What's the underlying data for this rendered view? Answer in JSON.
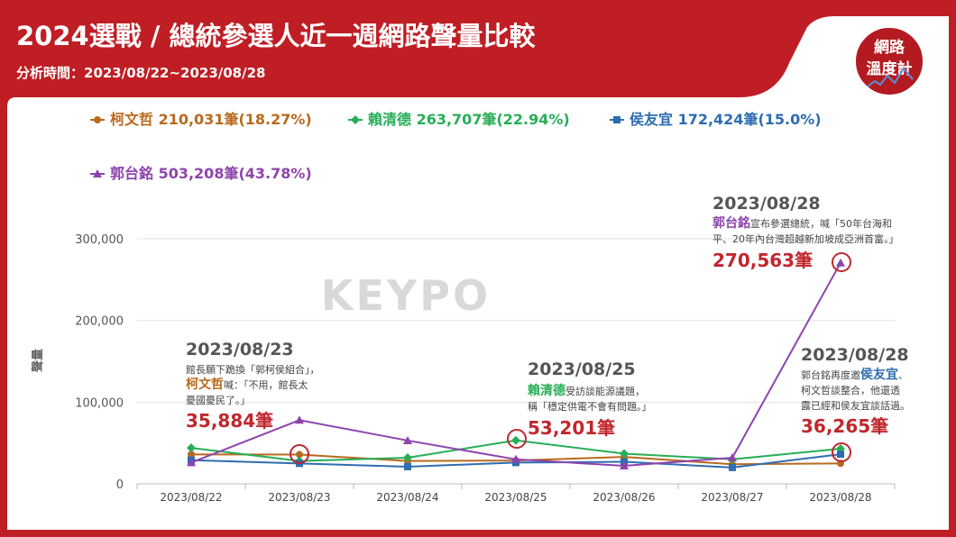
{
  "header": {
    "title": "2024選戰 / 總統參選人近一週網路聲量比較",
    "subtitle": "分析時間：2023/08/22~2023/08/28"
  },
  "logo": {
    "line1": "網路",
    "line2": "溫度計"
  },
  "watermark": "KEYPO",
  "colors": {
    "header_red": "#bf1e24",
    "panel_bg": "#ffffff",
    "ko": "#b86a1f",
    "lai": "#27ae57",
    "hou": "#2e6db0",
    "gou": "#8e44ad",
    "highlight": "#c0272d"
  },
  "chart_data": {
    "type": "line",
    "categories": [
      "2023/08/22",
      "2023/08/23",
      "2023/08/24",
      "2023/08/25",
      "2023/08/26",
      "2023/08/27",
      "2023/08/28"
    ],
    "ylabel": "聲量",
    "ylim": [
      0,
      300000
    ],
    "yticks": [
      "0",
      "100,000",
      "200,000",
      "300,000"
    ],
    "grid": true,
    "legend_position": "top",
    "series": [
      {
        "key": "ko",
        "name": "柯文哲 210,031筆(18.27%)",
        "color": "#b86a1f",
        "marker": "circle",
        "values": [
          36000,
          35884,
          28000,
          28500,
          33000,
          24000,
          25000
        ]
      },
      {
        "key": "lai",
        "name": "賴清德 263,707筆(22.94%)",
        "color": "#27ae57",
        "marker": "diamond",
        "values": [
          44000,
          28000,
          32000,
          53201,
          37000,
          30000,
          43000
        ]
      },
      {
        "key": "hou",
        "name": "侯友宜 172,424筆(15.0%)",
        "color": "#2e6db0",
        "marker": "square",
        "values": [
          29000,
          25000,
          21000,
          26000,
          27000,
          20000,
          36265
        ]
      },
      {
        "key": "gou",
        "name": "郭台銘 503,208筆(43.78%)",
        "color": "#8e44ad",
        "marker": "triangle",
        "values": [
          26000,
          78000,
          53000,
          30000,
          22000,
          32000,
          270563
        ]
      }
    ],
    "annotations": [
      {
        "series": "ko",
        "index": 1,
        "date": "2023/08/23",
        "lines": [
          [
            {
              "t": "館長願下跪換「郭柯侯組合」，"
            }
          ],
          [
            {
              "t": "柯文哲",
              "who": "ko"
            },
            {
              "t": "喊：「不用，館長太"
            }
          ],
          [
            {
              "t": "憂國憂民了。」"
            }
          ]
        ],
        "value": "35,884筆"
      },
      {
        "series": "lai",
        "index": 3,
        "date": "2023/08/25",
        "lines": [
          [
            {
              "t": "賴清德",
              "who": "lai"
            },
            {
              "t": "受訪談能源議題，"
            }
          ],
          [
            {
              "t": "稱「穩定供電不會有問題。」"
            }
          ]
        ],
        "value": "53,201筆"
      },
      {
        "series": "gou",
        "index": 6,
        "date": "2023/08/28",
        "lines": [
          [
            {
              "t": "郭台銘",
              "who": "gou"
            },
            {
              "t": "宣布參選總統，喊「50年台海和"
            }
          ],
          [
            {
              "t": "平、20年內台灣超越新加坡成亞洲首富。」"
            }
          ]
        ],
        "value": "270,563筆"
      },
      {
        "series": "hou",
        "index": 6,
        "date": "2023/08/28",
        "lines": [
          [
            {
              "t": "郭台銘再度邀"
            },
            {
              "t": "侯友宜",
              "who": "hou"
            },
            {
              "t": "、"
            }
          ],
          [
            {
              "t": "柯文哲談整合，他還透"
            }
          ],
          [
            {
              "t": "露已經和侯友宜談話過。"
            }
          ]
        ],
        "value": "36,265筆"
      }
    ]
  }
}
